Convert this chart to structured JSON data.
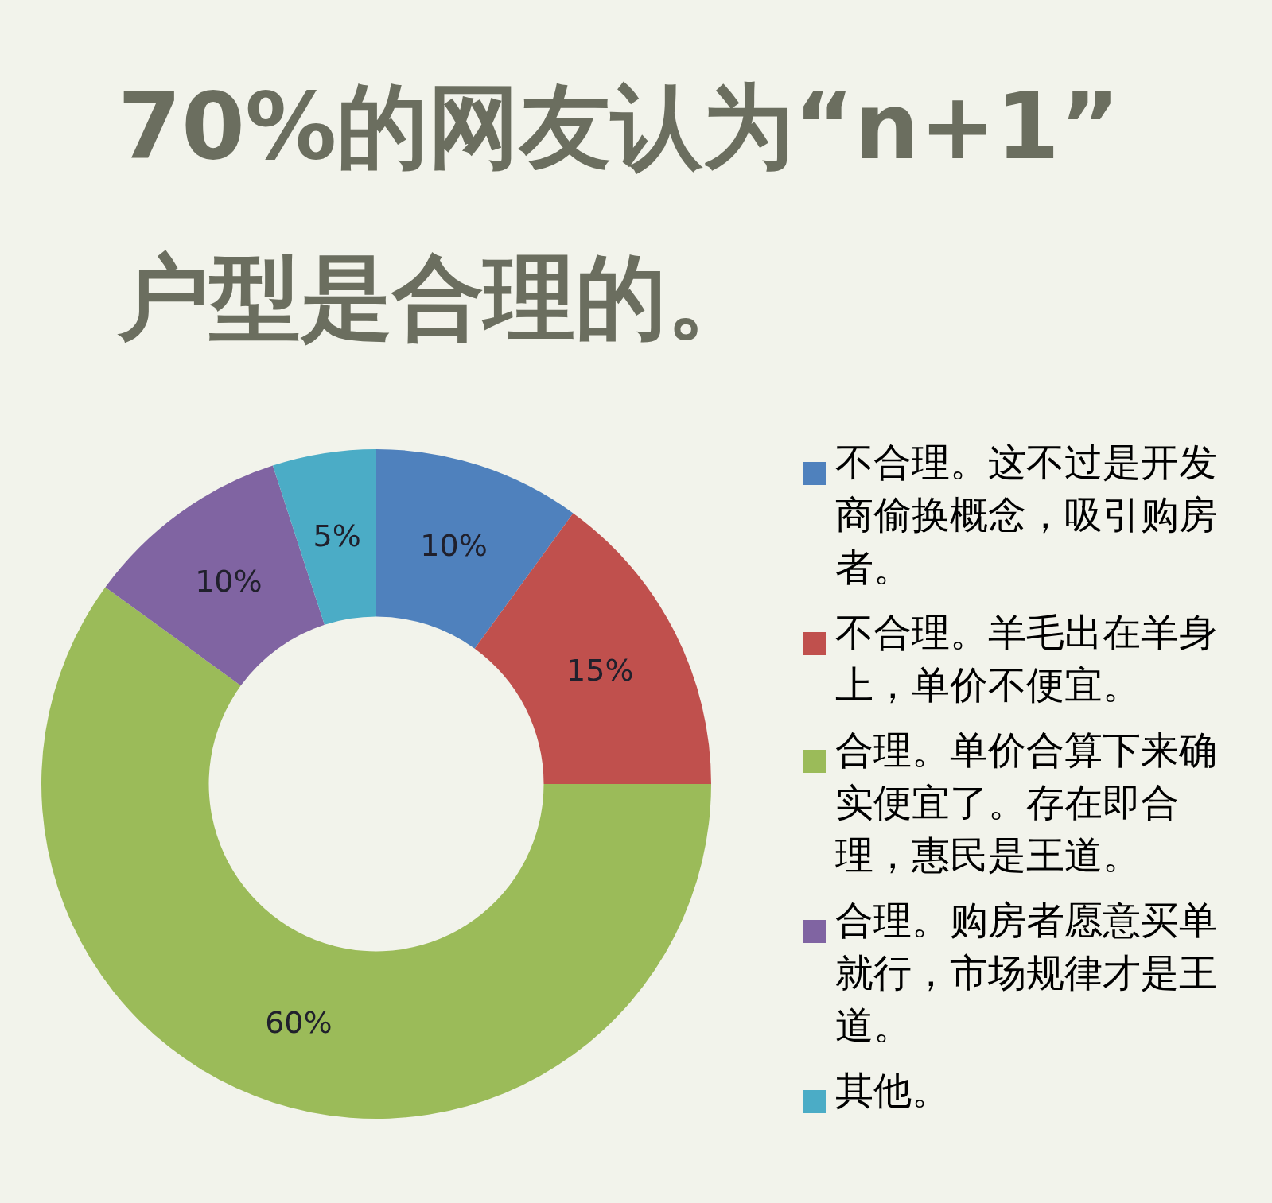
{
  "chart_data": {
    "type": "donut",
    "title": "70%的网友认为“n+1”户型是合理的。",
    "categories": [
      "不合理。这不过是开发商偷换概念，吸引购房者。",
      "不合理。羊毛出在羊身上，单价不便宜。",
      "合理。单价合算下来确实便宜了。存在即合理，惠民是王道。",
      "合理。购房者愿意买单就行，市场规律才是王道。",
      "其他。"
    ],
    "values": [
      10,
      15,
      60,
      10,
      5
    ],
    "colors": [
      "#4f81bd",
      "#c0504d",
      "#9bbb59",
      "#8064a2",
      "#4bacc6"
    ],
    "value_labels": [
      "10%",
      "15%",
      "60%",
      "10%",
      "5%"
    ],
    "legend": "right"
  }
}
